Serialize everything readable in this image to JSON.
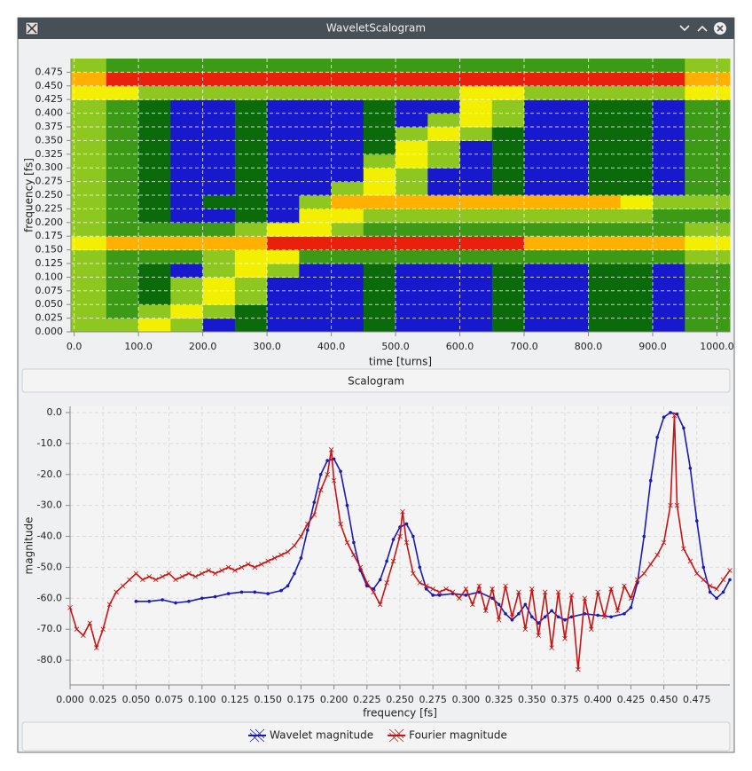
{
  "window": {
    "title": "WaveletScalogram"
  },
  "panel_label": "Scalogram",
  "chart_data": [
    {
      "type": "heatmap",
      "xlabel": "time [turns]",
      "ylabel": "frequency [fs]",
      "xlim": [
        -5,
        1020
      ],
      "ylim": [
        0,
        0.5
      ],
      "xbins": [
        -5,
        50,
        100,
        150,
        200,
        250,
        300,
        350,
        400,
        450,
        500,
        550,
        600,
        650,
        700,
        750,
        800,
        850,
        900,
        950,
        1020
      ],
      "ybins": [
        0,
        0.025,
        0.05,
        0.075,
        0.1,
        0.125,
        0.15,
        0.175,
        0.2,
        0.225,
        0.25,
        0.275,
        0.3,
        0.325,
        0.35,
        0.375,
        0.4,
        0.425,
        0.45,
        0.475,
        0.5
      ],
      "colorscale": [
        "#1818cc",
        "#0b6b0b",
        "#3d9a16",
        "#8dc71f",
        "#f2f000",
        "#ffb000",
        "#e8200c"
      ],
      "grid": true,
      "xticks": [
        {
          "value": 0,
          "label": "0.0"
        },
        {
          "value": 100,
          "label": "100.0"
        },
        {
          "value": 200,
          "label": "200.0"
        },
        {
          "value": 300,
          "label": "300.0"
        },
        {
          "value": 400,
          "label": "400.0"
        },
        {
          "value": 500,
          "label": "500.0"
        },
        {
          "value": 600,
          "label": "600.0"
        },
        {
          "value": 700,
          "label": "700.0"
        },
        {
          "value": 800,
          "label": "800.0"
        },
        {
          "value": 900,
          "label": "900.0"
        },
        {
          "value": 1000,
          "label": "1000.0"
        }
      ],
      "yticks": [
        {
          "value": 0,
          "label": "0.000"
        },
        {
          "value": 0.025,
          "label": "0.025"
        },
        {
          "value": 0.05,
          "label": "0.050"
        },
        {
          "value": 0.075,
          "label": "0.075"
        },
        {
          "value": 0.1,
          "label": "0.100"
        },
        {
          "value": 0.125,
          "label": "0.125"
        },
        {
          "value": 0.15,
          "label": "0.150"
        },
        {
          "value": 0.175,
          "label": "0.175"
        },
        {
          "value": 0.2,
          "label": "0.200"
        },
        {
          "value": 0.225,
          "label": "0.225"
        },
        {
          "value": 0.25,
          "label": "0.250"
        },
        {
          "value": 0.275,
          "label": "0.275"
        },
        {
          "value": 0.3,
          "label": "0.300"
        },
        {
          "value": 0.325,
          "label": "0.325"
        },
        {
          "value": 0.35,
          "label": "0.350"
        },
        {
          "value": 0.375,
          "label": "0.375"
        },
        {
          "value": 0.4,
          "label": "0.400"
        },
        {
          "value": 0.425,
          "label": "0.425"
        },
        {
          "value": 0.45,
          "label": "0.450"
        },
        {
          "value": 0.475,
          "label": "0.475"
        }
      ],
      "z": [
        [
          3,
          3,
          4,
          3,
          0,
          1,
          0,
          0,
          0,
          1,
          0,
          0,
          0,
          1,
          0,
          0,
          1,
          1,
          0,
          2
        ],
        [
          3,
          2,
          3,
          4,
          3,
          1,
          0,
          0,
          0,
          1,
          0,
          0,
          0,
          1,
          0,
          0,
          1,
          1,
          0,
          2
        ],
        [
          3,
          2,
          1,
          3,
          4,
          3,
          0,
          0,
          0,
          1,
          0,
          0,
          0,
          1,
          0,
          0,
          1,
          1,
          0,
          2
        ],
        [
          3,
          2,
          1,
          3,
          4,
          3,
          0,
          0,
          0,
          1,
          0,
          0,
          0,
          1,
          0,
          0,
          1,
          1,
          0,
          2
        ],
        [
          3,
          2,
          1,
          0,
          3,
          4,
          3,
          0,
          0,
          1,
          0,
          0,
          0,
          1,
          0,
          0,
          1,
          1,
          0,
          2
        ],
        [
          3,
          2,
          2,
          2,
          3,
          4,
          4,
          2,
          2,
          2,
          2,
          2,
          2,
          2,
          2,
          2,
          2,
          2,
          2,
          3
        ],
        [
          4,
          5,
          5,
          5,
          5,
          5,
          6,
          6,
          6,
          6,
          6,
          6,
          6,
          6,
          5,
          5,
          5,
          5,
          5,
          4
        ],
        [
          3,
          2,
          2,
          2,
          2,
          3,
          4,
          4,
          3,
          2,
          2,
          2,
          2,
          2,
          2,
          2,
          2,
          2,
          2,
          3
        ],
        [
          3,
          2,
          1,
          0,
          0,
          1,
          0,
          4,
          4,
          3,
          3,
          3,
          3,
          3,
          3,
          3,
          3,
          3,
          2,
          2
        ],
        [
          3,
          2,
          1,
          0,
          1,
          1,
          0,
          3,
          5,
          5,
          5,
          5,
          5,
          5,
          5,
          5,
          5,
          4,
          3,
          3
        ],
        [
          3,
          2,
          1,
          0,
          0,
          1,
          0,
          0,
          3,
          4,
          3,
          0,
          0,
          1,
          0,
          0,
          1,
          1,
          0,
          2
        ],
        [
          3,
          2,
          1,
          0,
          0,
          1,
          0,
          0,
          0,
          4,
          3,
          0,
          0,
          1,
          0,
          0,
          1,
          1,
          0,
          2
        ],
        [
          3,
          2,
          1,
          0,
          0,
          1,
          0,
          0,
          0,
          3,
          4,
          3,
          0,
          1,
          0,
          0,
          1,
          1,
          0,
          2
        ],
        [
          3,
          2,
          1,
          0,
          0,
          1,
          0,
          0,
          0,
          1,
          4,
          3,
          0,
          1,
          0,
          0,
          1,
          1,
          0,
          2
        ],
        [
          3,
          2,
          1,
          0,
          0,
          1,
          0,
          0,
          0,
          1,
          3,
          4,
          3,
          1,
          0,
          0,
          1,
          1,
          0,
          2
        ],
        [
          3,
          2,
          1,
          0,
          0,
          1,
          0,
          0,
          0,
          1,
          0,
          3,
          4,
          3,
          0,
          0,
          1,
          1,
          0,
          2
        ],
        [
          3,
          2,
          1,
          0,
          0,
          1,
          0,
          0,
          0,
          1,
          0,
          0,
          4,
          3,
          0,
          0,
          1,
          1,
          0,
          2
        ],
        [
          4,
          4,
          3,
          3,
          3,
          3,
          3,
          3,
          3,
          3,
          3,
          3,
          4,
          4,
          3,
          3,
          3,
          3,
          3,
          4
        ],
        [
          5,
          6,
          6,
          6,
          6,
          6,
          6,
          6,
          6,
          6,
          6,
          6,
          6,
          6,
          6,
          6,
          6,
          6,
          6,
          5
        ],
        [
          3,
          2,
          2,
          2,
          2,
          2,
          2,
          2,
          2,
          2,
          2,
          2,
          2,
          2,
          2,
          2,
          2,
          2,
          2,
          3
        ]
      ]
    },
    {
      "type": "line",
      "xlabel": "frequency [fs]",
      "ylabel": "magnitude",
      "xlim": [
        0,
        0.5
      ],
      "ylim": [
        -88,
        2
      ],
      "grid": true,
      "legend": "bottom",
      "xticks": [
        {
          "value": 0,
          "label": "0.000"
        },
        {
          "value": 0.025,
          "label": "0.025"
        },
        {
          "value": 0.05,
          "label": "0.050"
        },
        {
          "value": 0.075,
          "label": "0.075"
        },
        {
          "value": 0.1,
          "label": "0.100"
        },
        {
          "value": 0.125,
          "label": "0.125"
        },
        {
          "value": 0.15,
          "label": "0.150"
        },
        {
          "value": 0.175,
          "label": "0.175"
        },
        {
          "value": 0.2,
          "label": "0.200"
        },
        {
          "value": 0.225,
          "label": "0.225"
        },
        {
          "value": 0.25,
          "label": "0.250"
        },
        {
          "value": 0.275,
          "label": "0.275"
        },
        {
          "value": 0.3,
          "label": "0.300"
        },
        {
          "value": 0.325,
          "label": "0.325"
        },
        {
          "value": 0.35,
          "label": "0.350"
        },
        {
          "value": 0.375,
          "label": "0.375"
        },
        {
          "value": 0.4,
          "label": "0.400"
        },
        {
          "value": 0.425,
          "label": "0.425"
        },
        {
          "value": 0.45,
          "label": "0.450"
        },
        {
          "value": 0.475,
          "label": "0.475"
        }
      ],
      "yticks": [
        {
          "value": 0,
          "label": "0.0"
        },
        {
          "value": -10,
          "label": "-10.0"
        },
        {
          "value": -20,
          "label": "-20.0"
        },
        {
          "value": -30,
          "label": "-30.0"
        },
        {
          "value": -40,
          "label": "-40.0"
        },
        {
          "value": -50,
          "label": "-50.0"
        },
        {
          "value": -60,
          "label": "-60.0"
        },
        {
          "value": -70,
          "label": "-70.0"
        },
        {
          "value": -80,
          "label": "-80.0"
        }
      ],
      "series": [
        {
          "name": "Wavelet magnitude",
          "color": "#1a1ab4",
          "marker": "circle",
          "x": [
            0.05,
            0.06,
            0.07,
            0.08,
            0.09,
            0.1,
            0.11,
            0.12,
            0.13,
            0.14,
            0.15,
            0.16,
            0.165,
            0.17,
            0.175,
            0.18,
            0.185,
            0.19,
            0.195,
            0.2,
            0.205,
            0.21,
            0.215,
            0.22,
            0.225,
            0.23,
            0.235,
            0.24,
            0.245,
            0.25,
            0.255,
            0.26,
            0.265,
            0.27,
            0.275,
            0.28,
            0.29,
            0.3,
            0.31,
            0.32,
            0.325,
            0.33,
            0.335,
            0.34,
            0.345,
            0.35,
            0.355,
            0.36,
            0.365,
            0.37,
            0.375,
            0.38,
            0.39,
            0.4,
            0.41,
            0.42,
            0.425,
            0.43,
            0.435,
            0.44,
            0.445,
            0.45,
            0.455,
            0.46,
            0.465,
            0.47,
            0.475,
            0.48,
            0.485,
            0.49,
            0.495,
            0.5
          ],
          "values": [
            -61,
            -61,
            -60.5,
            -61.5,
            -61,
            -60,
            -59.5,
            -58.5,
            -58,
            -58,
            -58.5,
            -57.5,
            -56,
            -52,
            -47,
            -38,
            -29,
            -20,
            -15.5,
            -15,
            -19,
            -30,
            -42,
            -51,
            -56,
            -57,
            -54,
            -48,
            -41,
            -37,
            -36,
            -40,
            -50,
            -57,
            -59,
            -59,
            -58.5,
            -59,
            -58,
            -60,
            -62,
            -65,
            -67,
            -65,
            -62,
            -66,
            -68,
            -66,
            -64,
            -66,
            -67,
            -66,
            -65,
            -65.5,
            -66,
            -65,
            -63,
            -55,
            -40,
            -22,
            -8,
            -1.5,
            0,
            -0.5,
            -5,
            -18,
            -35,
            -50,
            -58,
            -60,
            -58,
            -54
          ]
        },
        {
          "name": "Fourier magnitude",
          "color": "#c81414",
          "marker": "cross",
          "x": [
            0,
            0.005,
            0.01,
            0.015,
            0.02,
            0.025,
            0.03,
            0.035,
            0.04,
            0.045,
            0.05,
            0.055,
            0.06,
            0.065,
            0.07,
            0.075,
            0.08,
            0.085,
            0.09,
            0.095,
            0.1,
            0.105,
            0.11,
            0.115,
            0.12,
            0.125,
            0.13,
            0.135,
            0.14,
            0.145,
            0.15,
            0.155,
            0.16,
            0.165,
            0.17,
            0.175,
            0.18,
            0.185,
            0.19,
            0.195,
            0.198,
            0.2,
            0.205,
            0.21,
            0.215,
            0.22,
            0.225,
            0.23,
            0.235,
            0.24,
            0.245,
            0.25,
            0.252,
            0.255,
            0.26,
            0.265,
            0.27,
            0.275,
            0.28,
            0.285,
            0.29,
            0.295,
            0.3,
            0.305,
            0.31,
            0.315,
            0.32,
            0.325,
            0.33,
            0.335,
            0.34,
            0.345,
            0.35,
            0.355,
            0.36,
            0.365,
            0.37,
            0.375,
            0.38,
            0.385,
            0.39,
            0.395,
            0.4,
            0.405,
            0.41,
            0.415,
            0.42,
            0.425,
            0.43,
            0.435,
            0.44,
            0.445,
            0.45,
            0.455,
            0.458,
            0.46,
            0.465,
            0.47,
            0.475,
            0.48,
            0.485,
            0.49,
            0.495,
            0.5
          ],
          "values": [
            -63,
            -70,
            -72,
            -68,
            -76,
            -70,
            -62,
            -58,
            -56,
            -54,
            -52,
            -54,
            -53,
            -54,
            -53,
            -52,
            -54,
            -53,
            -52,
            -53,
            -52,
            -51,
            -52,
            -51,
            -50,
            -51,
            -50,
            -49,
            -50,
            -49,
            -48,
            -47,
            -46,
            -45,
            -43,
            -40,
            -36,
            -33,
            -25,
            -20,
            -12,
            -22,
            -36,
            -42,
            -46,
            -50,
            -55,
            -58,
            -62,
            -55,
            -48,
            -40,
            -32,
            -42,
            -52,
            -55,
            -56,
            -57,
            -58,
            -57,
            -58,
            -60,
            -57,
            -62,
            -56,
            -64,
            -57,
            -67,
            -56,
            -66,
            -58,
            -70,
            -57,
            -72,
            -58,
            -76,
            -58,
            -73,
            -59,
            -83,
            -60,
            -70,
            -58,
            -66,
            -57,
            -64,
            -56,
            -60,
            -54,
            -52,
            -49,
            -46,
            -42,
            -30,
            -1,
            -30,
            -44,
            -48,
            -52,
            -54,
            -56,
            -57,
            -54,
            -51
          ]
        }
      ]
    }
  ]
}
